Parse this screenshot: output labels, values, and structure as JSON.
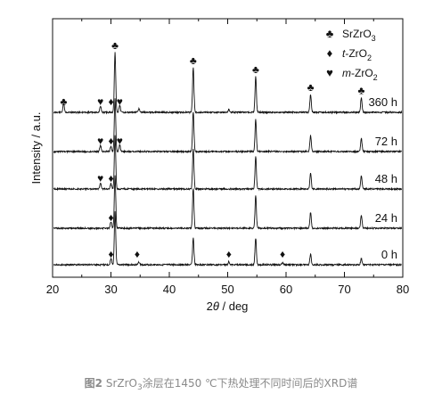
{
  "caption": {
    "fig_label": "图2",
    "pre": "SrZrO",
    "sub": "3",
    "post": "涂层在1450 ℃下热处理不同时间后的XRD谱"
  },
  "chart_data": {
    "type": "line",
    "xlabel_theta": "θ",
    "xlabel_pre": "2",
    "xlabel_post": " / deg",
    "ylabel": "Intensity / a.u.",
    "xlim": [
      20,
      80
    ],
    "xticks": [
      20,
      25,
      30,
      35,
      40,
      45,
      50,
      55,
      60,
      65,
      70,
      75,
      80
    ],
    "xtick_labels": [
      "20",
      "30",
      "40",
      "50",
      "60",
      "70",
      "80"
    ],
    "legend": [
      {
        "symbol": "♣",
        "label_pre": "SrZrO",
        "label_sub": "3",
        "italic_prefix": ""
      },
      {
        "symbol": "♦",
        "label_pre": "-ZrO",
        "label_sub": "2",
        "italic_prefix": "t"
      },
      {
        "symbol": "♥",
        "label_pre": "-ZrO",
        "label_sub": "2",
        "italic_prefix": "m"
      }
    ],
    "series": [
      {
        "name": "360 h",
        "peaks": [
          [
            21.9,
            0.15
          ],
          [
            28.2,
            0.1
          ],
          [
            30.7,
            1.0
          ],
          [
            31.5,
            0.12
          ],
          [
            34.8,
            0.06
          ],
          [
            44.1,
            0.75
          ],
          [
            50.2,
            0.05
          ],
          [
            54.8,
            0.6
          ],
          [
            64.2,
            0.3
          ],
          [
            72.9,
            0.25
          ]
        ],
        "markers": [
          {
            "x": 21.9,
            "symbol": "♣"
          },
          {
            "x": 28.2,
            "symbol": "♥"
          },
          {
            "x": 30.0,
            "symbol": "♦"
          },
          {
            "x": 31.5,
            "symbol": "♥"
          },
          {
            "x": 30.7,
            "symbol": "♣"
          },
          {
            "x": 44.1,
            "symbol": "♣"
          },
          {
            "x": 54.8,
            "symbol": "♣"
          },
          {
            "x": 64.2,
            "symbol": "♣"
          },
          {
            "x": 72.9,
            "symbol": "♣"
          }
        ]
      },
      {
        "name": "72 h",
        "peaks": [
          [
            28.2,
            0.12
          ],
          [
            30.0,
            0.1
          ],
          [
            30.7,
            1.0
          ],
          [
            31.5,
            0.12
          ],
          [
            44.1,
            0.75
          ],
          [
            54.8,
            0.6
          ],
          [
            64.2,
            0.3
          ],
          [
            72.9,
            0.25
          ]
        ],
        "markers": [
          {
            "x": 28.2,
            "symbol": "♥"
          },
          {
            "x": 30.0,
            "symbol": "♦"
          },
          {
            "x": 31.5,
            "symbol": "♥"
          }
        ]
      },
      {
        "name": "48 h",
        "peaks": [
          [
            28.2,
            0.12
          ],
          [
            30.0,
            0.1
          ],
          [
            30.7,
            1.0
          ],
          [
            44.1,
            0.75
          ],
          [
            54.8,
            0.6
          ],
          [
            64.2,
            0.3
          ],
          [
            72.9,
            0.25
          ]
        ],
        "markers": [
          {
            "x": 28.2,
            "symbol": "♥"
          },
          {
            "x": 30.0,
            "symbol": "♦"
          }
        ]
      },
      {
        "name": "24 h",
        "peaks": [
          [
            30.0,
            0.12
          ],
          [
            30.7,
            1.0
          ],
          [
            44.1,
            0.75
          ],
          [
            54.8,
            0.6
          ],
          [
            64.2,
            0.3
          ],
          [
            72.9,
            0.25
          ]
        ],
        "markers": [
          {
            "x": 30.0,
            "symbol": "♦"
          }
        ]
      },
      {
        "name": "0 h",
        "peaks": [
          [
            30.0,
            0.12
          ],
          [
            30.7,
            1.0
          ],
          [
            34.8,
            0.05
          ],
          [
            44.1,
            0.5
          ],
          [
            50.2,
            0.06
          ],
          [
            54.8,
            0.5
          ],
          [
            59.4,
            0.04
          ],
          [
            64.2,
            0.2
          ],
          [
            72.9,
            0.12
          ]
        ],
        "markers": [
          {
            "x": 30.0,
            "symbol": "♦"
          },
          {
            "x": 34.5,
            "symbol": "♦"
          },
          {
            "x": 50.2,
            "symbol": "♦"
          },
          {
            "x": 59.4,
            "symbol": "♦"
          }
        ]
      }
    ]
  }
}
